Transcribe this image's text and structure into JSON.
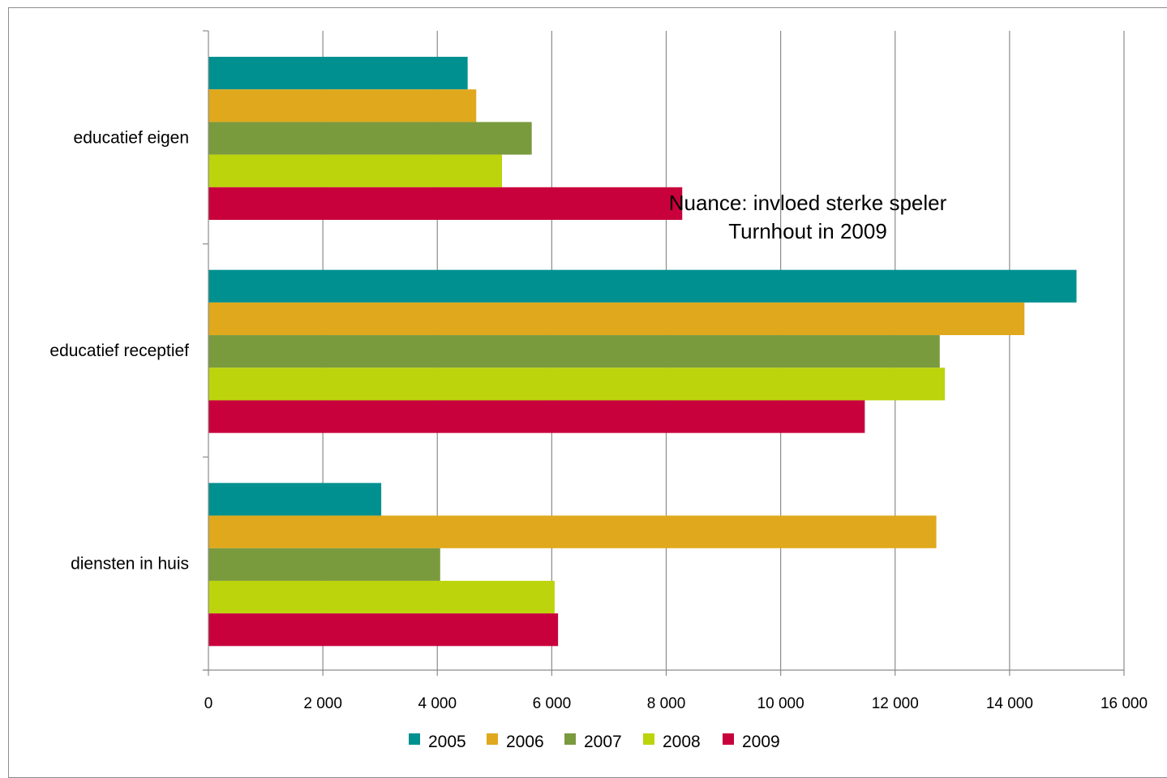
{
  "chart_data": {
    "type": "bar",
    "orientation": "horizontal",
    "categories": [
      "educatief eigen",
      "educatief receptief",
      "diensten in huis"
    ],
    "series": [
      {
        "name": "2005",
        "color": "#009090",
        "values": [
          4530,
          15170,
          3020
        ]
      },
      {
        "name": "2006",
        "color": "#e0a81c",
        "values": [
          4680,
          14260,
          12720
        ]
      },
      {
        "name": "2007",
        "color": "#7a9a3e",
        "values": [
          5650,
          12780,
          4050
        ]
      },
      {
        "name": "2008",
        "color": "#bcd40c",
        "values": [
          5130,
          12870,
          6050
        ]
      },
      {
        "name": "2009",
        "color": "#c8003c",
        "values": [
          8280,
          11470,
          6110
        ]
      }
    ],
    "xlim": [
      0,
      16000
    ],
    "xticks": [
      0,
      2000,
      4000,
      6000,
      8000,
      10000,
      12000,
      14000,
      16000
    ],
    "xtick_labels": [
      "0",
      "2 000",
      "4 000",
      "6 000",
      "8 000",
      "10 000",
      "12 000",
      "14 000",
      "16 000"
    ],
    "grid": "vertical",
    "legend_position": "bottom",
    "annotation": {
      "lines": [
        "Nuance: invloed sterke speler",
        "Turnhout in 2009"
      ]
    }
  }
}
